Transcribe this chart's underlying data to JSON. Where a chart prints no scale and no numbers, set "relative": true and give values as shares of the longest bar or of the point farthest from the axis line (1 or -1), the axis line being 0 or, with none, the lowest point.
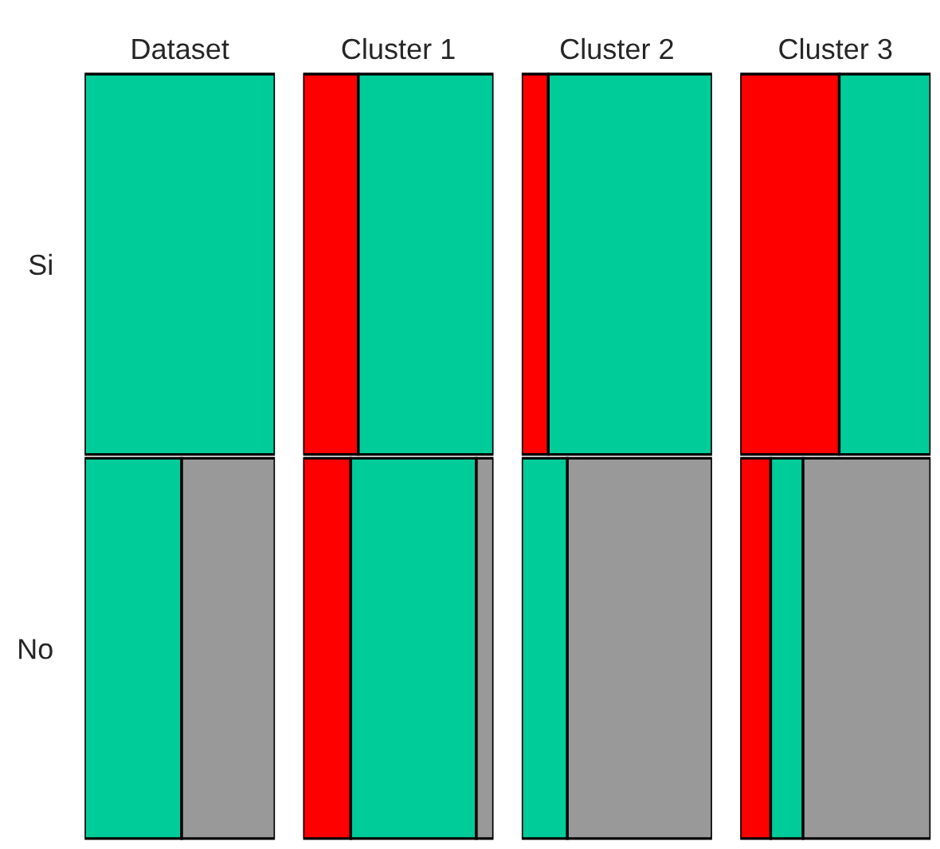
{
  "chart_data": [
    {
      "type": "bar",
      "orientation": "horizontal",
      "stacked": true,
      "relative": true,
      "title": "Dataset",
      "categories": [
        "Si",
        "No"
      ],
      "tick_labels": "y",
      "series": [
        {
          "color": "#00cc99",
          "values": [
            1,
            0.51
          ]
        },
        {
          "color": "#999999",
          "values": [
            null,
            0.49
          ]
        }
      ]
    },
    {
      "type": "bar",
      "orientation": "horizontal",
      "stacked": true,
      "relative": true,
      "title": "Cluster 1",
      "categories": [
        null,
        null
      ],
      "tick_labels": false,
      "series": [
        {
          "color": "#ff0000",
          "values": [
            0.29,
            0.25
          ]
        },
        {
          "color": "#00cc99",
          "values": [
            0.71,
            0.66
          ]
        },
        {
          "color": "#999999",
          "values": [
            null,
            0.09
          ]
        }
      ]
    },
    {
      "type": "bar",
      "orientation": "horizontal",
      "stacked": true,
      "relative": true,
      "title": "Cluster 2",
      "categories": [
        null,
        null
      ],
      "tick_labels": false,
      "series": [
        {
          "color": "#ff0000",
          "values": [
            0.14,
            null
          ]
        },
        {
          "color": "#00cc99",
          "values": [
            0.86,
            0.24
          ]
        },
        {
          "color": "#999999",
          "values": [
            null,
            0.76
          ]
        }
      ]
    },
    {
      "type": "bar",
      "orientation": "horizontal",
      "stacked": true,
      "relative": true,
      "title": "Cluster 3",
      "categories": [
        null,
        null
      ],
      "tick_labels": false,
      "series": [
        {
          "color": "#ff0000",
          "values": [
            0.52,
            0.16
          ]
        },
        {
          "color": "#00cc99",
          "values": [
            0.48,
            0.17
          ]
        },
        {
          "color": "#999999",
          "values": [
            null,
            0.67
          ]
        }
      ]
    }
  ]
}
